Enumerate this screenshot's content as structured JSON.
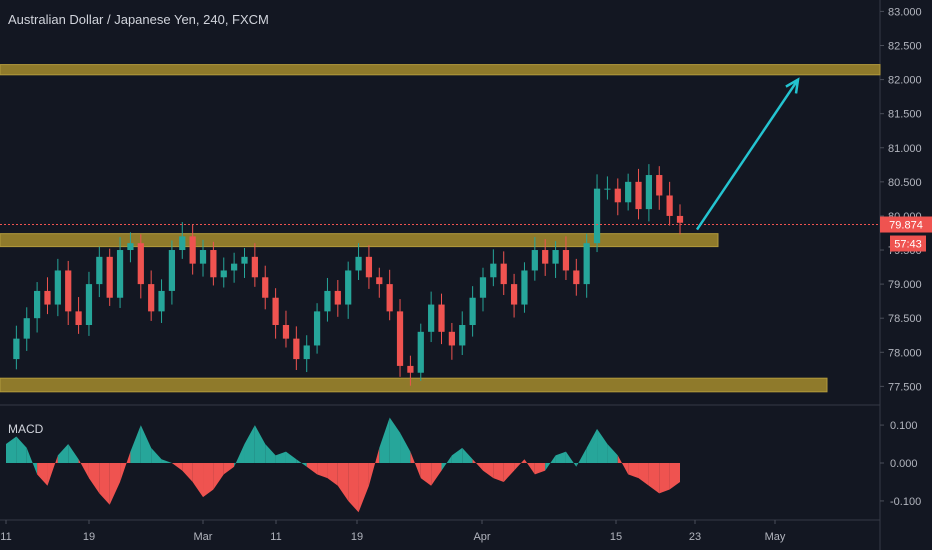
{
  "header": {
    "title": "Australian Dollar / Japanese Yen, 240, FXCM"
  },
  "price_badge": {
    "value": "79.874",
    "countdown": "57:43",
    "color": "#ef5350"
  },
  "macd_label": "MACD",
  "colors": {
    "background": "#131722",
    "up": "#26a69a",
    "down": "#ef5350",
    "zone": "#8f7a2b",
    "arrow": "#24c4d1",
    "axis_text": "#b2b5be"
  },
  "chart_data": [
    {
      "type": "candlestick",
      "title": "Australian Dollar / Japanese Yen, 240, FXCM",
      "ylim": [
        77.3,
        83.05
      ],
      "y_ticks": [
        "83.000",
        "82.500",
        "82.000",
        "81.500",
        "81.000",
        "80.500",
        "80.000",
        "79.500",
        "79.000",
        "78.500",
        "78.000",
        "77.500"
      ],
      "x_ticks": [
        "11",
        "19",
        "Mar",
        "11",
        "19",
        "Apr",
        "15",
        "23",
        "May"
      ],
      "last_price": 79.874,
      "price_series": [
        77.9,
        78.2,
        78.5,
        78.9,
        78.7,
        79.2,
        78.6,
        78.4,
        79.0,
        79.4,
        78.8,
        79.5,
        79.6,
        79.0,
        78.6,
        78.9,
        79.5,
        79.7,
        79.3,
        79.5,
        79.1,
        79.2,
        79.3,
        79.4,
        79.1,
        78.8,
        78.4,
        78.2,
        77.9,
        78.1,
        78.6,
        78.9,
        78.7,
        79.2,
        79.4,
        79.1,
        79.0,
        78.6,
        77.8,
        77.7,
        78.3,
        78.7,
        78.3,
        78.1,
        78.4,
        78.8,
        79.1,
        79.3,
        79.0,
        78.7,
        79.2,
        79.5,
        79.3,
        79.5,
        79.2,
        79.0,
        79.6,
        80.4,
        80.4,
        80.2,
        80.5,
        80.1,
        80.6,
        80.3,
        80.0,
        79.9
      ],
      "zones": [
        {
          "low": 82.07,
          "high": 82.22
        },
        {
          "low": 79.55,
          "high": 79.74
        },
        {
          "low": 77.42,
          "high": 77.62
        }
      ],
      "arrow": {
        "from": 79.8,
        "to": 82.0
      }
    },
    {
      "type": "bar",
      "name": "MACD",
      "ylim": [
        -0.145,
        0.145
      ],
      "y_ticks": [
        "0.100",
        "0.000",
        "-0.100"
      ],
      "values": [
        0.05,
        0.07,
        0.04,
        -0.03,
        -0.06,
        0.02,
        0.05,
        0.01,
        -0.04,
        -0.08,
        -0.11,
        -0.05,
        0.03,
        0.1,
        0.04,
        0.01,
        0.0,
        -0.02,
        -0.05,
        -0.09,
        -0.07,
        -0.03,
        -0.01,
        0.05,
        0.1,
        0.05,
        0.02,
        0.03,
        0.01,
        -0.01,
        -0.03,
        -0.04,
        -0.06,
        -0.1,
        -0.13,
        -0.06,
        0.04,
        0.12,
        0.08,
        0.03,
        -0.04,
        -0.06,
        -0.02,
        0.02,
        0.04,
        0.01,
        -0.02,
        -0.04,
        -0.05,
        -0.02,
        0.01,
        -0.03,
        -0.02,
        0.02,
        0.03,
        -0.01,
        0.04,
        0.09,
        0.05,
        0.02,
        -0.03,
        -0.04,
        -0.06,
        -0.08,
        -0.07,
        -0.05
      ]
    }
  ]
}
